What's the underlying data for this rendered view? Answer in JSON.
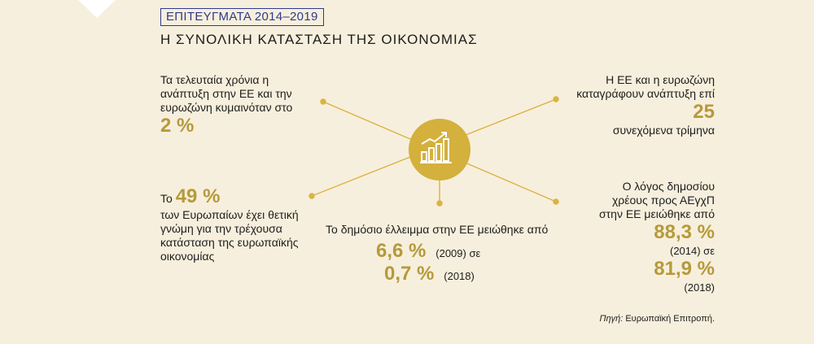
{
  "header": {
    "kicker": "ΕΠΙΤΕΥΓΜΑΤΑ 2014–2019",
    "title": "Η ΣΥΝΟΛΙΚΗ ΚΑΤΑΣΤΑΣΗ ΤΗΣ ΟΙΚΟΝΟΜΙΑΣ"
  },
  "colors": {
    "background": "#f7efdd",
    "accent": "#b59a3a",
    "hub": "#d4b03c",
    "lines": "#d9b443",
    "kicker": "#2e3a8c"
  },
  "hub": {
    "icon": "chart-growth-icon"
  },
  "facts": {
    "growth": {
      "line1": "Τα τελευταία χρόνια η",
      "line2": "ανάπτυξη στην ΕΕ και την",
      "line3": "ευρωζώνη κυμαινόταν στο",
      "value": "2 %"
    },
    "quarters": {
      "line1": "Η ΕΕ και η ευρωζώνη",
      "line2": "καταγράφουν ανάπτυξη επί",
      "value": "25",
      "line3": "συνεχόμενα τρίμηνα"
    },
    "opinion": {
      "prefix": "Το",
      "value": "49 %",
      "line1": "των Ευρωπαίων έχει θετική",
      "line2": "γνώμη για την τρέχουσα",
      "line3": "κατάσταση της ευρωπαϊκής",
      "line4": "οικονομίας"
    },
    "deficit": {
      "line1": "Το δημόσιο έλλειμμα στην ΕΕ μειώθηκε από",
      "value1": "6,6 %",
      "note1": "(2009) σε",
      "value2": "0,7 %",
      "note2": "(2018)"
    },
    "debt": {
      "line1": "Ο λόγος δημοσίου",
      "line2": "χρέους προς ΑΕγχΠ",
      "line3": "στην ΕΕ μειώθηκε από",
      "value1": "88,3 %",
      "note1": "(2014) σε",
      "value2": "81,9 %",
      "note2": "(2018)"
    }
  },
  "source": {
    "label": "Πηγή:",
    "text": "Ευρωπαϊκή Επιτροπή."
  }
}
